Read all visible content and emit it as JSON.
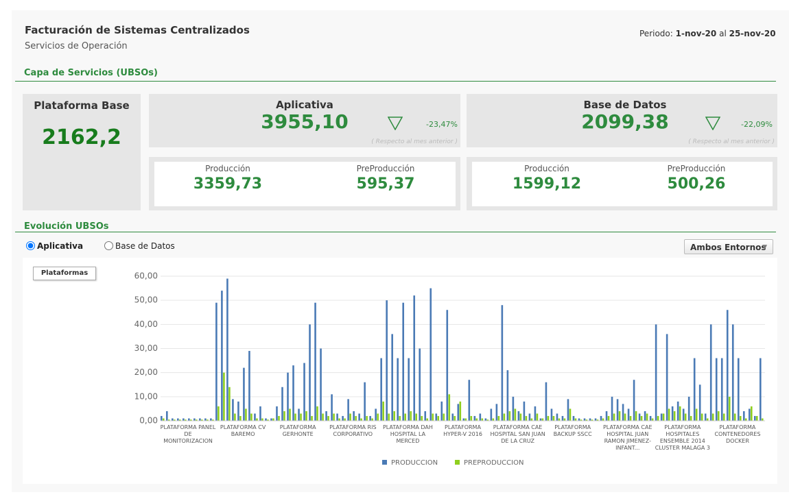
{
  "header": {
    "title": "Facturación de Sistemas Centralizados",
    "subtitle": "Servicios de Operación",
    "period_label": "Periodo:",
    "period_from": "1-nov-20",
    "period_sep": "al",
    "period_to": "25-nov-20"
  },
  "section1": "Capa de Servicios (UBSOs)",
  "base": {
    "title": "Plataforma Base",
    "value": "2162,2"
  },
  "aplicativa": {
    "title": "Aplicativa",
    "value": "3955,10",
    "change": "-23,47%",
    "note": "( Respecto al mes anterior )",
    "prod_label": "Producción",
    "prod": "3359,73",
    "pre_label": "PreProducción",
    "pre": "595,37"
  },
  "basedatos": {
    "title": "Base de Datos",
    "value": "2099,38",
    "change": "-22,09%",
    "note": "( Respecto al mes anterior )",
    "prod_label": "Producción",
    "prod": "1599,12",
    "pre_label": "PreProducción",
    "pre": "500,26"
  },
  "section2": "Evolución UBSOs",
  "radios": [
    "Aplicativa",
    "Base de Datos"
  ],
  "dropdown": "Ambos Entornos",
  "button": "Plataformas",
  "chart_data": {
    "type": "bar",
    "categories": [
      null,
      null,
      null,
      null,
      null,
      "PLATAFORMA PANEL DE MONITORIZACION",
      null,
      null,
      null,
      null,
      null,
      null,
      null,
      null,
      null,
      "PLATAFORMA CV BAREMO",
      null,
      null,
      null,
      null,
      null,
      null,
      null,
      null,
      null,
      "PLATAFORMA GERHONTE",
      null,
      null,
      null,
      null,
      null,
      null,
      null,
      null,
      null,
      "PLATAFORMA RIS CORPORATIVO",
      null,
      null,
      null,
      null,
      null,
      null,
      null,
      null,
      null,
      "PLATAFORMA DAH HOSPITAL LA MERCED",
      null,
      null,
      null,
      null,
      null,
      null,
      null,
      null,
      null,
      "PLATAFORMA HYPER-V 2016",
      null,
      null,
      null,
      null,
      null,
      null,
      null,
      null,
      null,
      "PLATAFORMA CAE HOSPITAL SAN JUAN DE LA CRUZ",
      null,
      null,
      null,
      null,
      null,
      null,
      null,
      null,
      null,
      "PLATAFORMA BACKUP SSCC",
      null,
      null,
      null,
      null,
      null,
      null,
      null,
      null,
      null,
      "PLATAFORMA CAE HOSPITAL JUAN RAMON JIMENEZ-INFANT...",
      null,
      null,
      null,
      null,
      null,
      null,
      null,
      null,
      null,
      "PLATAFORMA HOSPITALES ENSEMBLE 2014 CLUSTER MALAGA 3",
      null,
      null,
      null,
      null,
      null,
      null,
      null,
      null,
      null,
      "PLATAFORMA CONTENEDORES DOCKER",
      null,
      null,
      null,
      null
    ],
    "series": [
      {
        "name": "PRODUCCION",
        "color": "#4a7ab5",
        "values": [
          2,
          4,
          1,
          1,
          1,
          1,
          1,
          1,
          1,
          1,
          49,
          54,
          59,
          9,
          8,
          22,
          29,
          3,
          6,
          1,
          1,
          6,
          14,
          20,
          23,
          5,
          24,
          40,
          49,
          30,
          4,
          11,
          3,
          2,
          9,
          4,
          3,
          16,
          2,
          5,
          26,
          50,
          36,
          26,
          49,
          26,
          52,
          30,
          4,
          55,
          3,
          8,
          46,
          3,
          7,
          1,
          17,
          2,
          3,
          1,
          5,
          7,
          48,
          21,
          10,
          4,
          8,
          3,
          6,
          1,
          16,
          5,
          3,
          2,
          9,
          2,
          1,
          1,
          1,
          1,
          2,
          4,
          10,
          9,
          7,
          5,
          17,
          3,
          4,
          2,
          40,
          3,
          36,
          6,
          8,
          5,
          10,
          26,
          15,
          3,
          40,
          26,
          26,
          46,
          40,
          26,
          4,
          5,
          2,
          26
        ]
      },
      {
        "name": "PREPRODUCCION",
        "color": "#8fcf1e",
        "values": [
          1,
          0.5,
          0.5,
          0.5,
          0.5,
          0.5,
          0.5,
          0.5,
          0.5,
          0.5,
          6,
          20,
          14,
          3,
          2,
          5,
          3,
          1,
          1,
          0.5,
          1,
          2,
          4,
          5,
          3,
          3,
          4,
          2,
          6,
          3,
          2,
          3,
          1,
          1,
          3,
          2,
          1,
          2,
          1,
          3,
          8,
          3,
          4,
          2,
          3,
          4,
          3,
          2,
          1,
          3,
          2,
          3,
          11,
          2,
          8,
          1,
          2,
          1,
          1,
          0.5,
          1,
          2,
          3,
          4,
          5,
          3,
          2,
          1,
          3,
          1,
          2,
          2,
          1,
          1,
          5,
          1,
          0.5,
          0.5,
          0.5,
          0.5,
          1,
          2,
          3,
          4,
          3,
          2,
          4,
          2,
          3,
          1,
          2,
          3,
          5,
          4,
          6,
          3,
          2,
          5,
          3,
          1,
          3,
          4,
          3,
          10,
          3,
          2,
          1,
          6,
          2,
          1
        ]
      }
    ],
    "ylim": [
      0,
      60
    ],
    "yticks": [
      {
        "value": 0,
        "label": "0,00"
      },
      {
        "value": 10,
        "label": "10,00"
      },
      {
        "value": 20,
        "label": "20,00"
      },
      {
        "value": 30,
        "label": "30,00"
      },
      {
        "value": 40,
        "label": "40,00"
      },
      {
        "value": 50,
        "label": "50,00"
      },
      {
        "value": 60,
        "label": "60,00"
      }
    ],
    "grid": true
  }
}
